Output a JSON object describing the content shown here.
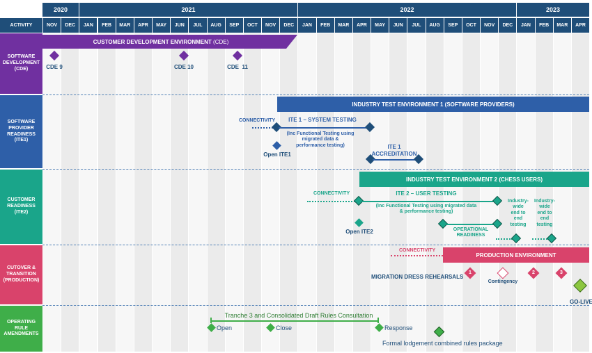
{
  "header": {
    "activity_label": "ACTIVITY",
    "years": [
      {
        "label": "2020"
      },
      {
        "label": "2021"
      },
      {
        "label": "2022"
      },
      {
        "label": "2023"
      }
    ],
    "months": [
      "NOV",
      "DEC",
      "JAN",
      "FEB",
      "MAR",
      "APR",
      "MAY",
      "JUN",
      "JUL",
      "AUG",
      "SEP",
      "OCT",
      "NOV",
      "DEC",
      "JAN",
      "FEB",
      "MAR",
      "APR",
      "MAY",
      "JUN",
      "JUL",
      "AUG",
      "SEP",
      "OCT",
      "NOV",
      "DEC",
      "JAN",
      "FEB",
      "MAR",
      "APR"
    ]
  },
  "rows": [
    {
      "label": "SOFTWARE\nDEVELOPMENT\n(CDE)",
      "color": "#7030a0"
    },
    {
      "label": "SOFTWARE\nPROVIDER\nREADINESS\n(ITE1)",
      "color": "#2e5fa8"
    },
    {
      "label": "CUSTOMER\nREADINESS\n(ITE2)",
      "color": "#1aa58a"
    },
    {
      "label": "CUTOVER &\nTRANSITION\n(PRODUCTION)",
      "color": "#d9436b"
    },
    {
      "label": "OPERATING\nRULE\nAMENDMENTS",
      "color": "#3fae49"
    }
  ],
  "cde": {
    "bar_bold": "CUSTOMER DEVELOPMENT ENVIRONMENT",
    "bar_suffix": " (CDE)",
    "milestones": [
      "CDE 9",
      "CDE 10",
      "CDE  11"
    ]
  },
  "ite1": {
    "bar": "INDUSTRY TEST ENVIRONMENT 1 (SOFTWARE PROVIDERS)",
    "connectivity": "CONNECTIVITY",
    "system_testing": "ITE 1 – SYSTEM TESTING",
    "system_testing_note": "(Inc Functional Testing using\nmigrated data &\nperformance testing)",
    "open": "Open ITE1",
    "accreditation": "ITE 1\nACCREDITATION"
  },
  "ite2": {
    "bar": "INDUSTRY TEST ENVIRONMENT 2 (CHESS USERS)",
    "connectivity": "CONNECTIVITY",
    "user_testing": "ITE 2 – USER TESTING",
    "user_testing_note": "(Inc Functional Testing using migrated data\n& performance testing)",
    "open": "Open ITE2",
    "operational": "OPERATIONAL\nREADINESS",
    "e2e_1": "Industry-\nwide\nend to\nend\ntesting",
    "e2e_2": "Industry-\nwide\nend to\nend\ntesting"
  },
  "prod": {
    "connectivity": "CONNECTIVITY",
    "bar": "PRODUCTION ENVIRONMENT",
    "rehearsals": "MIGRATION DRESS REHEARSALS",
    "contingency": "Contingency",
    "numbers": [
      "1",
      "2",
      "3"
    ],
    "golive": "GO-LIVE"
  },
  "rules": {
    "consultation": "Tranche 3 and Consolidated Draft Rules Consultation",
    "open": "Open",
    "close": "Close",
    "response": "Response",
    "formal": "Formal lodgement combined rules package"
  },
  "colors": {
    "header_navy": "#1f4e79",
    "cde_purple": "#7030a0",
    "ite1_blue": "#2e5fa8",
    "ite2_teal": "#1aa58a",
    "prod_pink": "#d9436b",
    "rules_green": "#3fae49",
    "golive_green": "#8cc63f"
  }
}
